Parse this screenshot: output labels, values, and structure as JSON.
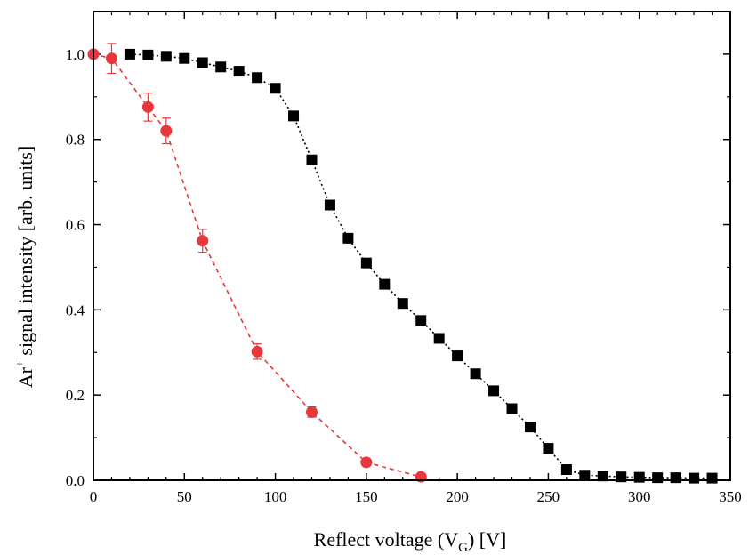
{
  "chart_data": {
    "type": "scatter",
    "title": "",
    "xlabel": {
      "main": "Reflect voltage (V",
      "sub": "G",
      "end": ") [V]"
    },
    "ylabel": {
      "pre": "Ar",
      "sup": "+",
      "post": " signal intensity [arb. units]"
    },
    "xlim": [
      0,
      350
    ],
    "ylim": [
      0,
      1.1
    ],
    "xticks": [
      0,
      50,
      100,
      150,
      200,
      250,
      300,
      350
    ],
    "xtick_labels": [
      "0",
      "50",
      "100",
      "150",
      "200",
      "250",
      "300",
      "350"
    ],
    "yticks": [
      0,
      0.2,
      0.4,
      0.6,
      0.8,
      1.0
    ],
    "ytick_labels": [
      "0.0",
      "0.2",
      "0.4",
      "0.6",
      "0.8",
      "1.0"
    ],
    "grid": false,
    "series": [
      {
        "marker": "square",
        "line": "dotted",
        "color": "#000000",
        "x": [
          20,
          30,
          40,
          50,
          60,
          70,
          80,
          90,
          100,
          110,
          120,
          130,
          140,
          150,
          160,
          170,
          180,
          190,
          200,
          210,
          220,
          230,
          240,
          250,
          260,
          270,
          280,
          290,
          300,
          310,
          320,
          330,
          340
        ],
        "y": [
          1.0,
          0.998,
          0.995,
          0.99,
          0.98,
          0.97,
          0.96,
          0.945,
          0.92,
          0.855,
          0.752,
          0.646,
          0.568,
          0.51,
          0.46,
          0.415,
          0.375,
          0.333,
          0.292,
          0.25,
          0.21,
          0.168,
          0.125,
          0.075,
          0.025,
          0.012,
          0.01,
          0.008,
          0.007,
          0.006,
          0.006,
          0.005,
          0.005
        ]
      },
      {
        "marker": "circle",
        "line": "dashed",
        "color": "#e8373b",
        "x": [
          0,
          10,
          30,
          40,
          60,
          90,
          120,
          150,
          180
        ],
        "y": [
          1.0,
          0.99,
          0.876,
          0.82,
          0.562,
          0.302,
          0.16,
          0.042,
          0.008
        ],
        "yerr": [
          0.0,
          0.035,
          0.033,
          0.03,
          0.027,
          0.018,
          0.012,
          0.005,
          0.0
        ]
      }
    ]
  }
}
